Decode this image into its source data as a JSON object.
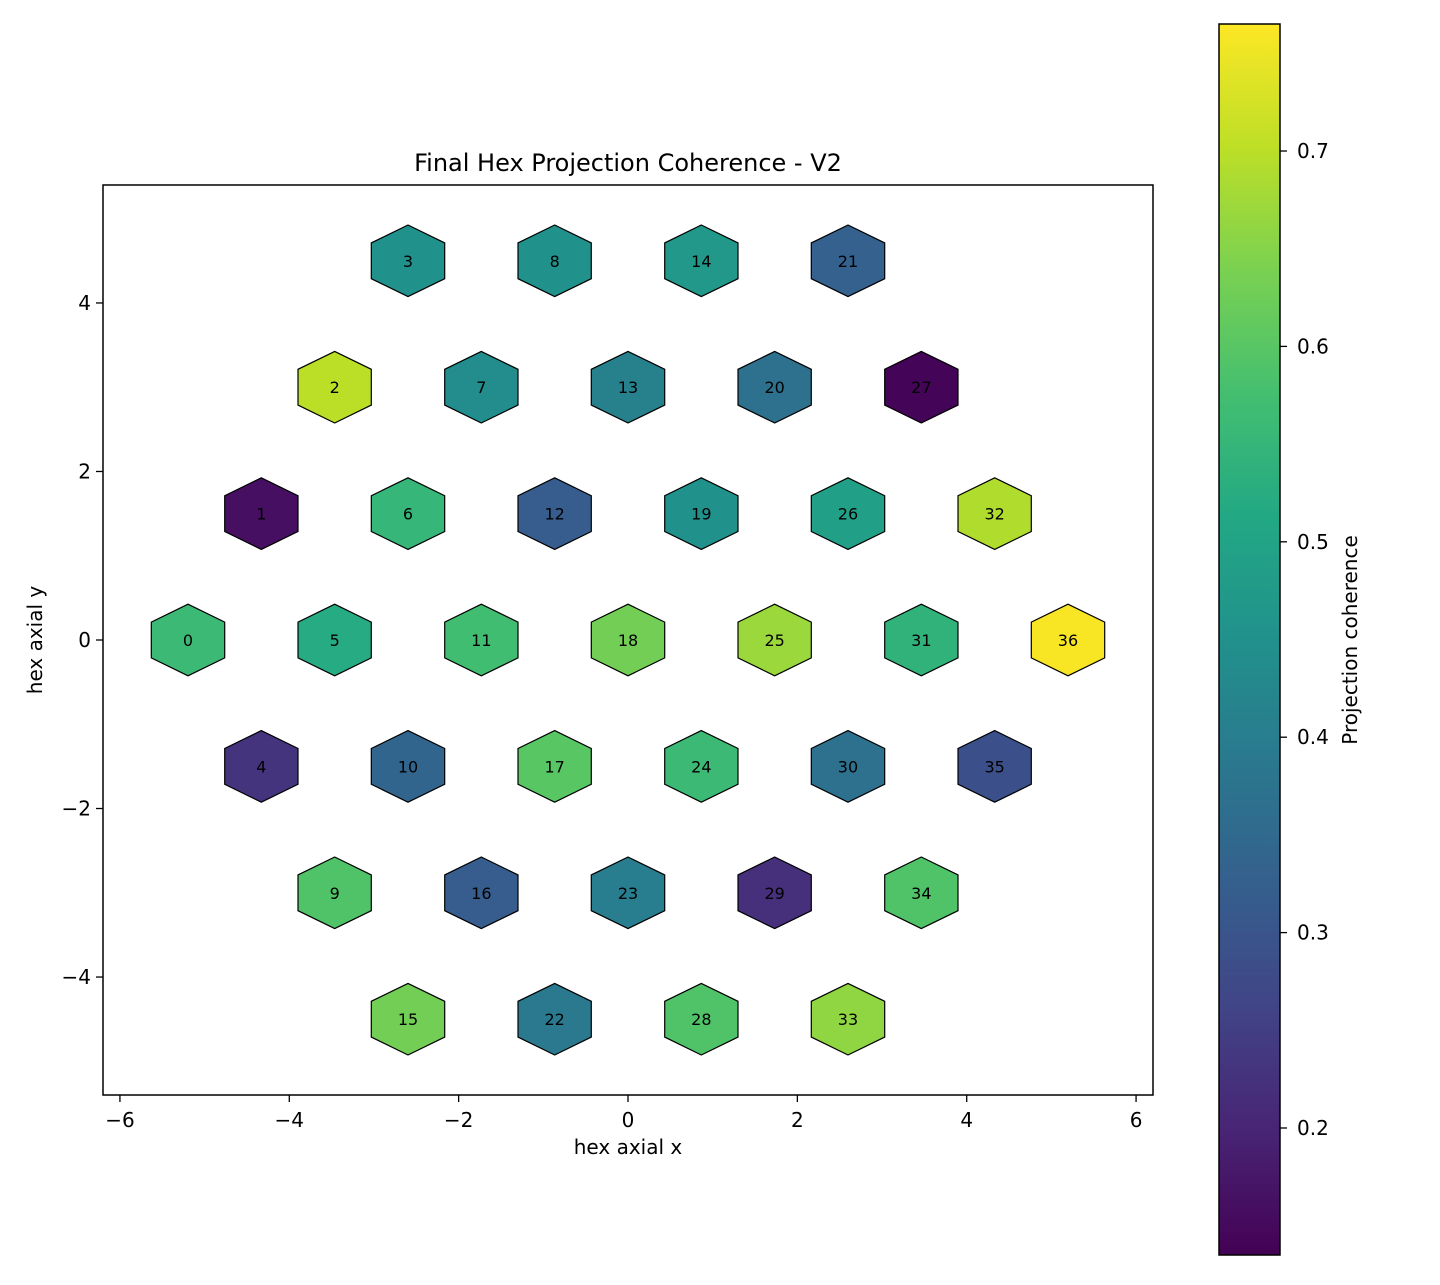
{
  "chart_data": {
    "type": "hexbin",
    "title": "Final Hex Projection Coherence - V2",
    "xlabel": "hex axial x",
    "ylabel": "hex axial y",
    "xlim": [
      -6.2,
      6.2
    ],
    "ylim": [
      -5.4,
      5.4
    ],
    "xticks": [
      -6,
      -4,
      -2,
      0,
      2,
      4,
      6
    ],
    "yticks": [
      -4,
      -2,
      0,
      2,
      4
    ],
    "xtick_labels": [
      "−6",
      "−4",
      "−2",
      "0",
      "2",
      "4",
      "6"
    ],
    "ytick_labels": [
      "−4",
      "−2",
      "0",
      "2",
      "4"
    ],
    "grid": false,
    "colormap": "viridis",
    "colorbar": {
      "label": "Projection coherence",
      "vmin": 0.135,
      "vmax": 0.765,
      "ticks": [
        0.2,
        0.3,
        0.4,
        0.5,
        0.6,
        0.7
      ],
      "tick_labels": [
        "0.2",
        "0.3",
        "0.4",
        "0.5",
        "0.6",
        "0.7"
      ]
    },
    "edge_color": "#000000",
    "cells": [
      {
        "id": "0",
        "x": -5.196,
        "y": 0.0,
        "value": 0.56
      },
      {
        "id": "1",
        "x": -4.33,
        "y": 1.5,
        "value": 0.16
      },
      {
        "id": "2",
        "x": -3.464,
        "y": 3.0,
        "value": 0.7
      },
      {
        "id": "3",
        "x": -2.598,
        "y": 4.5,
        "value": 0.45
      },
      {
        "id": "4",
        "x": -4.33,
        "y": -1.5,
        "value": 0.23
      },
      {
        "id": "5",
        "x": -3.464,
        "y": 0.0,
        "value": 0.52
      },
      {
        "id": "6",
        "x": -2.598,
        "y": 1.5,
        "value": 0.55
      },
      {
        "id": "7",
        "x": -1.732,
        "y": 3.0,
        "value": 0.44
      },
      {
        "id": "8",
        "x": -0.866,
        "y": 4.5,
        "value": 0.45
      },
      {
        "id": "9",
        "x": -3.464,
        "y": -3.0,
        "value": 0.59
      },
      {
        "id": "10",
        "x": -2.598,
        "y": -1.5,
        "value": 0.34
      },
      {
        "id": "11",
        "x": -1.732,
        "y": 0.0,
        "value": 0.57
      },
      {
        "id": "12",
        "x": -0.866,
        "y": 1.5,
        "value": 0.32
      },
      {
        "id": "13",
        "x": 0.0,
        "y": 3.0,
        "value": 0.41
      },
      {
        "id": "14",
        "x": 0.866,
        "y": 4.5,
        "value": 0.47
      },
      {
        "id": "15",
        "x": -2.598,
        "y": -4.5,
        "value": 0.63
      },
      {
        "id": "16",
        "x": -1.732,
        "y": -3.0,
        "value": 0.32
      },
      {
        "id": "17",
        "x": -0.866,
        "y": -1.5,
        "value": 0.6
      },
      {
        "id": "18",
        "x": 0.0,
        "y": 0.0,
        "value": 0.63
      },
      {
        "id": "19",
        "x": 0.866,
        "y": 1.5,
        "value": 0.45
      },
      {
        "id": "20",
        "x": 1.732,
        "y": 3.0,
        "value": 0.37
      },
      {
        "id": "21",
        "x": 2.598,
        "y": 4.5,
        "value": 0.33
      },
      {
        "id": "22",
        "x": -0.866,
        "y": -4.5,
        "value": 0.39
      },
      {
        "id": "23",
        "x": 0.0,
        "y": -3.0,
        "value": 0.4
      },
      {
        "id": "24",
        "x": 0.866,
        "y": -1.5,
        "value": 0.56
      },
      {
        "id": "25",
        "x": 1.732,
        "y": 0.0,
        "value": 0.67
      },
      {
        "id": "26",
        "x": 2.598,
        "y": 1.5,
        "value": 0.49
      },
      {
        "id": "27",
        "x": 3.464,
        "y": 3.0,
        "value": 0.14
      },
      {
        "id": "28",
        "x": 0.866,
        "y": -4.5,
        "value": 0.59
      },
      {
        "id": "29",
        "x": 1.732,
        "y": -3.0,
        "value": 0.22
      },
      {
        "id": "30",
        "x": 2.598,
        "y": -1.5,
        "value": 0.37
      },
      {
        "id": "31",
        "x": 3.464,
        "y": 0.0,
        "value": 0.54
      },
      {
        "id": "32",
        "x": 4.33,
        "y": 1.5,
        "value": 0.69
      },
      {
        "id": "33",
        "x": 2.598,
        "y": -4.5,
        "value": 0.66
      },
      {
        "id": "34",
        "x": 3.464,
        "y": -3.0,
        "value": 0.59
      },
      {
        "id": "35",
        "x": 4.33,
        "y": -1.5,
        "value": 0.29
      },
      {
        "id": "36",
        "x": 5.196,
        "y": 0.0,
        "value": 0.76
      }
    ]
  }
}
